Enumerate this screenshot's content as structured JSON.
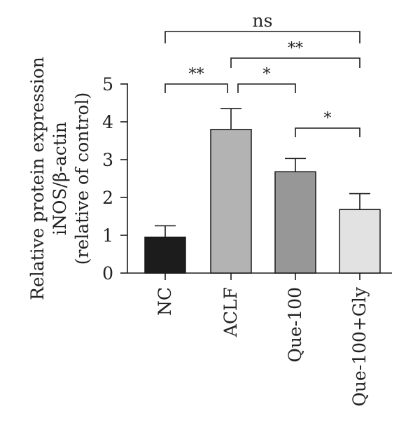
{
  "chart_data": {
    "type": "bar",
    "ylabel_lines": [
      "Relative protein expression",
      "iNOS/β-actin",
      "(relative of control)"
    ],
    "categories": [
      "NC",
      "ACLF",
      "Que-100",
      "Que-100+Gly"
    ],
    "values": [
      0.95,
      3.8,
      2.68,
      1.68
    ],
    "errors": [
      0.3,
      0.55,
      0.35,
      0.42
    ],
    "bar_colors": [
      "#1c1c1c",
      "#b3b3b3",
      "#979797",
      "#e2e2e2"
    ],
    "ylim": [
      0,
      5
    ],
    "yticks": [
      0,
      1,
      2,
      3,
      4,
      5
    ],
    "ytick_labels": [
      "0",
      "1",
      "2",
      "3",
      "4",
      "5"
    ],
    "grid": false,
    "significance": [
      {
        "from": "NC",
        "to": "Que-100+Gly",
        "label": "ns"
      },
      {
        "from": "ACLF",
        "to": "Que-100+Gly",
        "label": "**"
      },
      {
        "from": "NC",
        "to": "ACLF",
        "label": "**"
      },
      {
        "from": "ACLF",
        "to": "Que-100",
        "label": "*"
      },
      {
        "from": "Que-100",
        "to": "Que-100+Gly",
        "label": "*"
      }
    ]
  }
}
